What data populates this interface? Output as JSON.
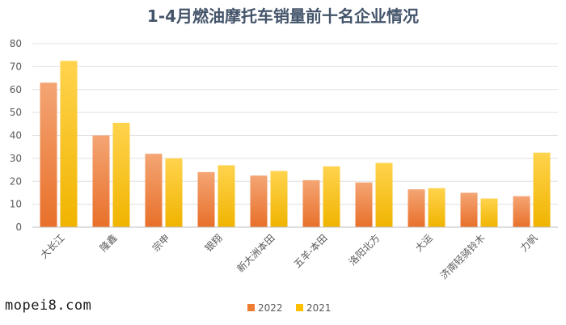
{
  "watermark": "mopei8.com",
  "colors": {
    "series_2022": "#ed7d31",
    "series_2022_light": "#f4a574",
    "series_2021": "#ffc000",
    "series_2021_light": "#ffd966",
    "gridline": "#e0e0e0",
    "axis": "#bfbfbf"
  },
  "chart_data": {
    "type": "bar",
    "title": "1-4月燃油摩托车销量前十名企业情况",
    "xlabel": "",
    "ylabel": "",
    "ylim": [
      0,
      80
    ],
    "yticks": [
      0,
      10,
      20,
      30,
      40,
      50,
      60,
      70,
      80
    ],
    "grid": true,
    "legend_position": "bottom",
    "categories": [
      "大长江",
      "隆鑫",
      "宗申",
      "银翔",
      "新大洲本田",
      "五羊-本田",
      "洛阳北方",
      "大运",
      "济南轻骑铃木",
      "力帆"
    ],
    "series": [
      {
        "name": "2022",
        "values": [
          63,
          40,
          32,
          24,
          22.5,
          20.5,
          19.5,
          16.5,
          15,
          13.5
        ]
      },
      {
        "name": "2021",
        "values": [
          72.5,
          45.5,
          30,
          27,
          24.5,
          26.5,
          28,
          17,
          12.5,
          32.5
        ]
      }
    ]
  }
}
